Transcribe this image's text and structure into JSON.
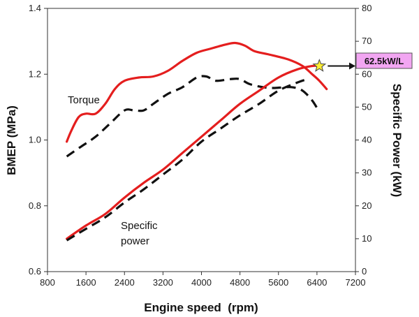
{
  "chart_data": {
    "type": "line",
    "xlabel": "Engine speed  (rpm)",
    "ylabel_left": "BMEP (MPa)",
    "ylabel_right": "Specific Power (kW)",
    "xlim": [
      800,
      7200
    ],
    "ylim_left": [
      0.6,
      1.4
    ],
    "ylim_right": [
      0,
      80
    ],
    "x_ticks": [
      "800",
      "1600",
      "2400",
      "3200",
      "4000",
      "4800",
      "5600",
      "6400",
      "7200"
    ],
    "y_left_ticks": [
      "0.6",
      "0.8",
      "1.0",
      "1.2",
      "1.4"
    ],
    "y_right_ticks": [
      "0",
      "10",
      "20",
      "30",
      "40",
      "50",
      "60",
      "70",
      "80"
    ],
    "grid": false,
    "series": [
      {
        "axis": "left",
        "style": "solid",
        "color": "#e41e1e",
        "x": [
          1200,
          1300,
          1450,
          1600,
          1800,
          2000,
          2200,
          2400,
          2700,
          3000,
          3300,
          3600,
          3900,
          4200,
          4500,
          4700,
          4900,
          5100,
          5400,
          5800,
          6100,
          6300,
          6450,
          6600
        ],
        "y": [
          0.995,
          1.03,
          1.07,
          1.08,
          1.08,
          1.11,
          1.155,
          1.18,
          1.19,
          1.193,
          1.21,
          1.24,
          1.265,
          1.278,
          1.29,
          1.295,
          1.287,
          1.27,
          1.26,
          1.245,
          1.225,
          1.2,
          1.18,
          1.155
        ]
      },
      {
        "axis": "left",
        "style": "dashed",
        "color": "#111111",
        "x": [
          1200,
          1500,
          1800,
          2100,
          2400,
          2600,
          2800,
          3000,
          3300,
          3600,
          3900,
          4100,
          4300,
          4600,
          4800,
          5000,
          5300,
          5500,
          5700,
          5900,
          6100,
          6300,
          6450
        ],
        "y": [
          0.95,
          0.98,
          1.01,
          1.05,
          1.09,
          1.09,
          1.09,
          1.11,
          1.14,
          1.16,
          1.19,
          1.193,
          1.18,
          1.185,
          1.185,
          1.17,
          1.16,
          1.158,
          1.16,
          1.16,
          1.15,
          1.12,
          1.085
        ]
      },
      {
        "axis": "right",
        "style": "solid",
        "color": "#e41e1e",
        "x": [
          1200,
          1600,
          2000,
          2400,
          2800,
          3200,
          3600,
          4000,
          4400,
          4800,
          5200,
          5600,
          6000,
          6300,
          6450
        ],
        "y": [
          10,
          14,
          17.5,
          22.5,
          27,
          31,
          36,
          41,
          46,
          51,
          55,
          59,
          61.5,
          62.5,
          62.5
        ]
      },
      {
        "axis": "right",
        "style": "dashed",
        "color": "#111111",
        "x": [
          1200,
          1600,
          2000,
          2400,
          2800,
          3200,
          3600,
          4000,
          4400,
          4800,
          5200,
          5600,
          6000,
          6200
        ],
        "y": [
          9.5,
          13,
          16.5,
          21,
          25,
          29.5,
          34,
          39.5,
          43.5,
          47.5,
          51,
          55,
          57.5,
          58.5
        ]
      }
    ],
    "annotations": {
      "torque_label": "Torque",
      "power_label_line1": "Specific",
      "power_label_line2": "power",
      "max_power_label": "62.5kW/L",
      "max_power_point": {
        "x": 6450,
        "y_right": 62.5
      }
    }
  }
}
